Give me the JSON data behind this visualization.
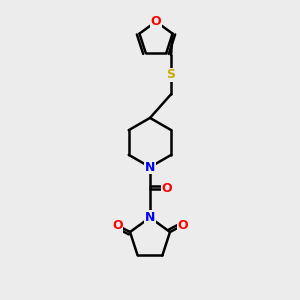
{
  "bg_color": "#ececec",
  "bond_color": "#000000",
  "bond_width": 1.8,
  "atom_colors": {
    "O": "#ff0000",
    "N": "#0000ff",
    "S": "#ccaa00",
    "C": "#000000"
  },
  "font_size": 9,
  "fig_size": [
    3.0,
    3.0
  ],
  "dpi": 100
}
